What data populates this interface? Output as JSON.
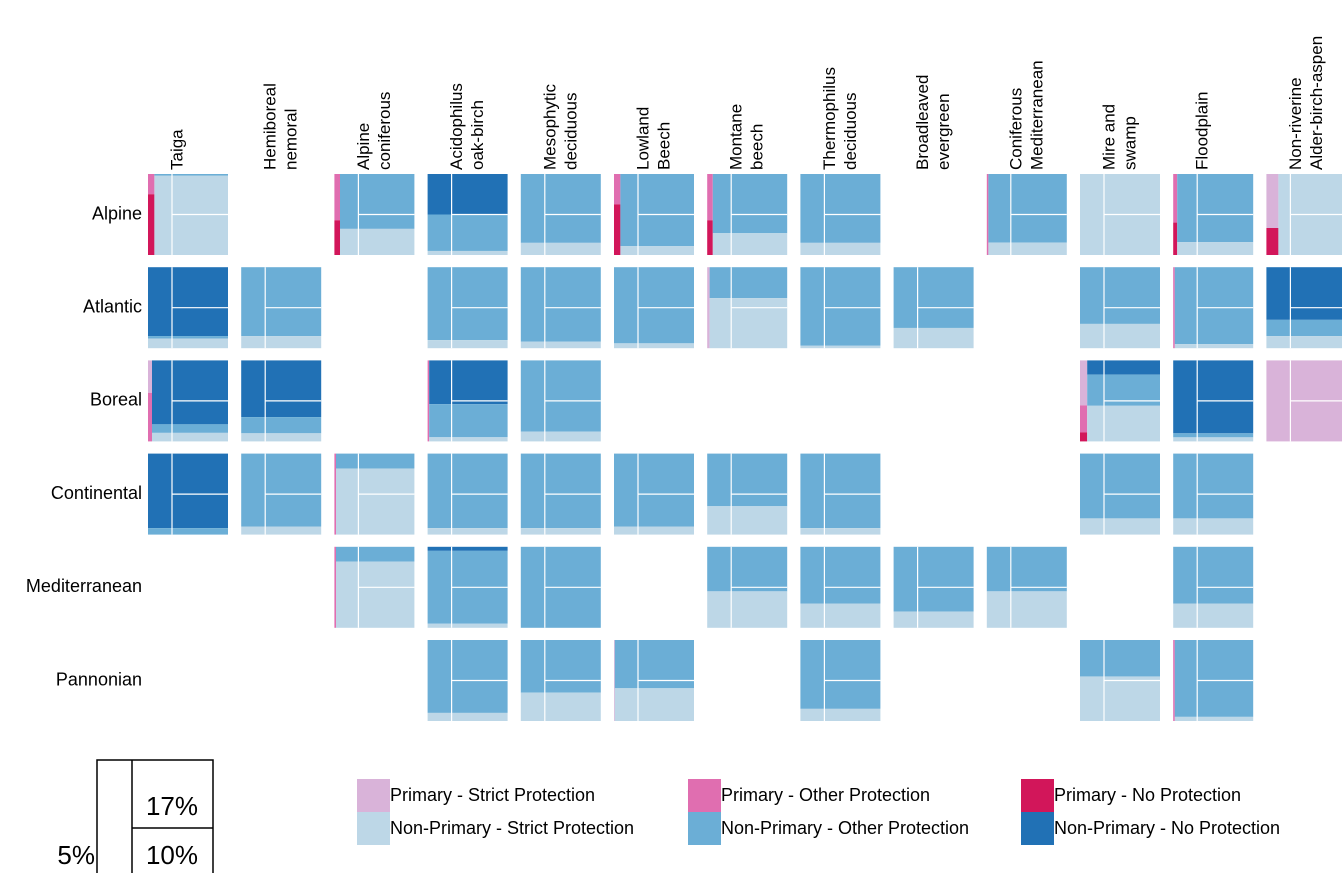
{
  "chart_data": {
    "type": "mosaic",
    "columns": [
      [
        "Taiga"
      ],
      [
        "Hemiboreal",
        "nemoral"
      ],
      [
        "Alpine",
        "coniferous"
      ],
      [
        "Acidophilus",
        "oak-birch"
      ],
      [
        "Mesophytic",
        "deciduous"
      ],
      [
        "Lowland",
        "Beech"
      ],
      [
        "Montane",
        "beech"
      ],
      [
        "Thermophilus",
        "deciduous"
      ],
      [
        "Broadleaved",
        "evergreen"
      ],
      [
        "Coniferous",
        "Mediterranean"
      ],
      [
        "Mire and",
        "swamp"
      ],
      [
        "Floodplain"
      ],
      [
        "Non-riverine",
        "Alder-birch-aspen"
      ]
    ],
    "series": [
      {
        "name": "Primary - Strict Protection",
        "color": "#d9b3d9"
      },
      {
        "name": "Primary - Other Protection",
        "color": "#e06eb0"
      },
      {
        "name": "Primary - No Protection",
        "color": "#d2165a"
      },
      {
        "name": "Non-Primary - Strict Protection",
        "color": "#bdd7e7"
      },
      {
        "name": "Non-Primary - Other Protection",
        "color": "#6baed6"
      },
      {
        "name": "Non-Primary - No Protection",
        "color": "#2171b5"
      }
    ],
    "rows": [
      {
        "name": "Alpine",
        "cells": [
          [
            0,
            2,
            6,
            90,
            2,
            0
          ],
          null,
          [
            0,
            4,
            3,
            30,
            63,
            0
          ],
          [
            0,
            0,
            0,
            5,
            45,
            50
          ],
          [
            0,
            0,
            0,
            15,
            85,
            0
          ],
          [
            0,
            3,
            5,
            10,
            82,
            0
          ],
          [
            0,
            4,
            3,
            25,
            68,
            0
          ],
          [
            0,
            0,
            0,
            15,
            85,
            0
          ],
          null,
          [
            0,
            2,
            0,
            15,
            83,
            0
          ],
          [
            0,
            0,
            0,
            100,
            0,
            0
          ],
          [
            0,
            3,
            2,
            15,
            80,
            0
          ],
          [
            10,
            0,
            5,
            85,
            0,
            0
          ]
        ]
      },
      {
        "name": "Atlantic",
        "cells": [
          [
            0,
            0,
            0,
            12,
            3,
            85
          ],
          [
            0,
            0,
            0,
            15,
            85,
            0
          ],
          null,
          [
            0,
            0,
            0,
            10,
            90,
            0
          ],
          [
            0,
            0,
            0,
            8,
            92,
            0
          ],
          [
            0,
            0,
            0,
            6,
            94,
            0
          ],
          [
            3,
            0,
            0,
            60,
            37,
            0
          ],
          [
            0,
            0,
            0,
            3,
            97,
            0
          ],
          [
            0,
            0,
            0,
            25,
            75,
            0
          ],
          null,
          [
            0,
            0,
            0,
            30,
            70,
            0
          ],
          [
            0,
            2,
            0,
            5,
            93,
            0
          ],
          [
            0,
            0,
            0,
            15,
            20,
            65
          ]
        ]
      },
      {
        "name": "Boreal",
        "cells": [
          [
            2,
            3,
            0,
            10,
            10,
            75
          ],
          [
            0,
            0,
            0,
            10,
            20,
            70
          ],
          null,
          [
            0,
            2,
            0,
            5,
            40,
            53
          ],
          [
            0,
            0,
            0,
            12,
            88,
            0
          ],
          null,
          null,
          null,
          null,
          null,
          [
            5,
            3,
            1,
            40,
            35,
            16
          ],
          [
            0,
            0,
            0,
            5,
            5,
            90
          ],
          [
            100,
            0,
            0,
            0,
            0,
            0
          ]
        ]
      },
      {
        "name": "Continental",
        "cells": [
          [
            0,
            0,
            0,
            0,
            8,
            92
          ],
          [
            0,
            0,
            0,
            10,
            90,
            0
          ],
          [
            0,
            2,
            0,
            80,
            18,
            0
          ],
          [
            0,
            0,
            0,
            8,
            92,
            0
          ],
          [
            0,
            0,
            0,
            8,
            92,
            0
          ],
          [
            0,
            0,
            0,
            10,
            90,
            0
          ],
          [
            0,
            0,
            0,
            35,
            65,
            0
          ],
          [
            0,
            0,
            0,
            8,
            92,
            0
          ],
          null,
          null,
          [
            0,
            0,
            0,
            20,
            80,
            0
          ],
          [
            0,
            0,
            0,
            20,
            80,
            0
          ],
          null
        ]
      },
      {
        "name": "Mediterranean",
        "cells": [
          null,
          null,
          [
            0,
            2,
            0,
            80,
            18,
            0
          ],
          [
            0,
            0,
            0,
            5,
            90,
            5
          ],
          [
            0,
            0,
            0,
            0,
            100,
            0
          ],
          null,
          [
            0,
            0,
            0,
            45,
            55,
            0
          ],
          [
            0,
            0,
            0,
            30,
            70,
            0
          ],
          [
            0,
            0,
            0,
            20,
            80,
            0
          ],
          [
            0,
            0,
            0,
            45,
            55,
            0
          ],
          null,
          [
            0,
            0,
            0,
            30,
            70,
            0
          ],
          null
        ]
      },
      {
        "name": "Pannonian",
        "cells": [
          null,
          null,
          null,
          [
            0,
            0,
            0,
            10,
            90,
            0
          ],
          [
            0,
            0,
            0,
            35,
            65,
            0
          ],
          [
            1,
            0,
            0,
            40,
            59,
            0
          ],
          null,
          [
            0,
            0,
            0,
            15,
            85,
            0
          ],
          null,
          null,
          [
            0,
            0,
            0,
            55,
            45,
            0
          ],
          [
            0,
            2,
            0,
            5,
            93,
            0
          ],
          null
        ]
      }
    ],
    "key": [
      {
        "value": 5,
        "label": "5%"
      },
      {
        "value": 17,
        "label": "17%"
      },
      {
        "value": 10,
        "label": "10%"
      }
    ]
  }
}
